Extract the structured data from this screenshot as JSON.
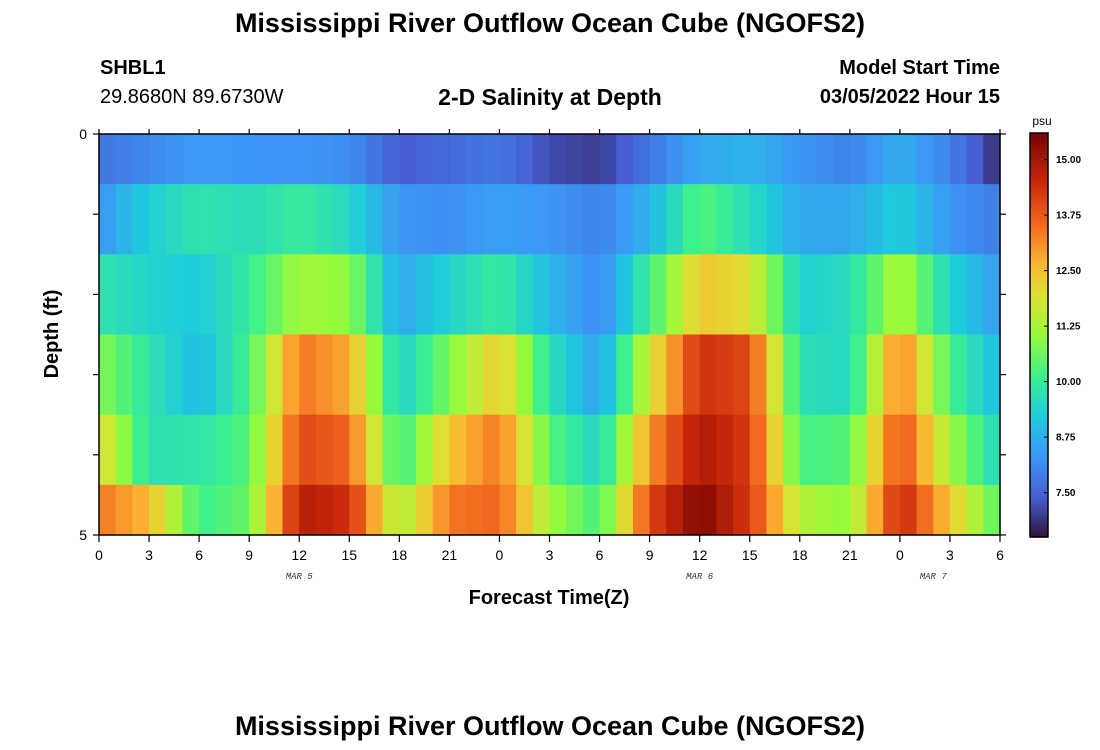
{
  "page": {
    "title": "Mississippi River Outflow Ocean Cube (NGOFS2)",
    "title_repeat": "Mississippi River Outflow Ocean Cube (NGOFS2)",
    "station": "SHBL1",
    "coordinates": "29.8680N  89.6730W",
    "subtitle": "2-D Salinity at Depth",
    "model_start_label": "Model Start Time",
    "model_start_value": "03/05/2022 Hour 15"
  },
  "chart_data": {
    "type": "heatmap",
    "title": "2-D Salinity at Depth",
    "xlabel": "Forecast Time(Z)",
    "ylabel": "Depth (ft)",
    "x_unit": "hour",
    "x_range_hours": [
      0,
      54
    ],
    "x_ticks": [
      "0",
      "3",
      "6",
      "9",
      "12",
      "15",
      "18",
      "21",
      "0",
      "3",
      "6",
      "9",
      "12",
      "15",
      "18",
      "21",
      "0",
      "3",
      "6"
    ],
    "x_tick_step_hours": 3,
    "date_labels": [
      {
        "label": "MAR 5",
        "hour": 12
      },
      {
        "label": "MAR 6",
        "hour": 36
      },
      {
        "label": "MAR 7",
        "hour": 50
      }
    ],
    "y_range": [
      0,
      5
    ],
    "y_tick_labels": [
      "0",
      "5"
    ],
    "y_ticks_minor": [
      1,
      2,
      3,
      4
    ],
    "colorbar": {
      "unit": "psu",
      "min": 6.5,
      "max": 15.6,
      "tick_values": [
        7.5,
        8.75,
        10.0,
        11.25,
        12.5,
        13.75,
        15.0
      ],
      "tick_labels": [
        "7.50",
        "8.75",
        "10.00",
        "11.25",
        "12.50",
        "13.75",
        "15.00"
      ],
      "colormap": "turbo"
    },
    "layer_depths_ft": [
      0.25,
      1,
      2,
      3,
      4,
      4.75
    ],
    "anchor_hours": [
      0,
      3,
      6,
      9,
      12,
      15,
      18,
      21,
      24,
      27,
      30,
      33,
      36,
      39,
      42,
      45,
      48,
      51,
      54
    ],
    "anchor_values": [
      [
        7.8,
        8.1,
        8.4,
        8.3,
        8.3,
        8.2,
        7.4,
        7.6,
        7.8,
        7.2,
        7.0,
        7.8,
        8.6,
        8.8,
        8.3,
        8.0,
        8.7,
        8.0,
        6.8
      ],
      [
        8.3,
        9.3,
        9.8,
        9.6,
        10.0,
        9.5,
        8.3,
        8.2,
        8.5,
        8.3,
        8.0,
        8.8,
        10.4,
        9.6,
        8.6,
        8.6,
        9.3,
        8.3,
        7.9
      ],
      [
        9.8,
        9.4,
        9.2,
        10.0,
        11.2,
        11.0,
        8.6,
        9.4,
        10.0,
        8.9,
        8.1,
        10.1,
        12.4,
        12.0,
        9.3,
        9.6,
        11.4,
        9.4,
        8.4
      ],
      [
        10.9,
        9.8,
        8.9,
        10.2,
        13.4,
        12.8,
        9.3,
        10.8,
        12.4,
        9.7,
        8.5,
        11.8,
        14.4,
        14.0,
        9.7,
        9.5,
        13.4,
        10.2,
        8.9
      ],
      [
        12.2,
        9.7,
        9.8,
        10.4,
        14.0,
        13.6,
        10.0,
        12.4,
        13.4,
        10.4,
        9.4,
        13.0,
        14.9,
        14.2,
        10.2,
        10.4,
        14.0,
        11.2,
        9.4
      ],
      [
        13.4,
        12.6,
        10.1,
        10.6,
        14.8,
        14.4,
        11.2,
        13.4,
        13.6,
        11.2,
        10.2,
        14.0,
        15.5,
        14.2,
        11.4,
        11.0,
        14.6,
        12.4,
        10.3
      ]
    ]
  }
}
